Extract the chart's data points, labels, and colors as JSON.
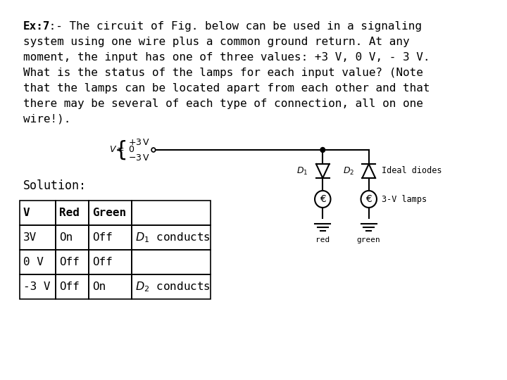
{
  "background_color": "#ffffff",
  "title_bold": "Ex:7",
  "title_bold_suffix": " :- The circuit of Fig. below can be used in a signaling\nsystem using one wire plus a common ground return. At any\nmoment, the input has one of three values: +3 V, 0 V, - 3 V.\nWhat is the status of the lamps for each input value? (Note\nthat the lamps can be located apart from each other and that\nthere may be several of each type of connection, all on one\nwire!).",
  "solution_label": "Solution:",
  "table_headers": [
    "V",
    "Red",
    "Green",
    ""
  ],
  "table_rows": [
    [
      "3V",
      "On",
      "Off",
      "D₁ conducts"
    ],
    [
      "0 V",
      "Off",
      "Off",
      ""
    ],
    [
      "-3 V",
      "Off",
      "On",
      "D₂ conducts"
    ]
  ],
  "font_family": "monospace",
  "fontsize_body": 11.5,
  "fontsize_solution": 12,
  "fontsize_table": 11.5
}
